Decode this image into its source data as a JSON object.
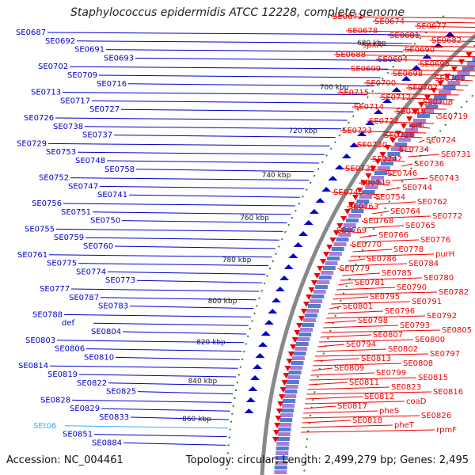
{
  "title": "Staphylococcus epidermidis ATCC 12228, complete genome",
  "accession": "Accession: NC_004461",
  "topology": "Topology: circular; Length: 2,499,279 bp; Genes: 2,495",
  "colors": {
    "left": "#0000cc",
    "right": "#ee0000",
    "highlight": "#33aaff",
    "backbone": "#888888",
    "tick": "#228822"
  },
  "ticks": [
    "680 kbp",
    "700 kbp",
    "720 kbp",
    "740 kbp",
    "760 kbp",
    "780 kbp",
    "800 kbp",
    "820 kbp",
    "840 kbp",
    "860 kbp"
  ],
  "left_labels": [
    "SE0687",
    "SE0692",
    "SE0691",
    "SE0693",
    "SE0702",
    "SE0709",
    "SE0716",
    "SE0713",
    "SE0717",
    "SE0727",
    "SE0726",
    "SE0738",
    "SE0737",
    "SE0729",
    "SE0753",
    "SE0748",
    "SE0758",
    "SE0752",
    "SE0747",
    "SE0741",
    "SE0756",
    "SE0751",
    "SE0750",
    "SE0755",
    "SE0759",
    "SE0760",
    "SE0761",
    "SE0775",
    "SE0774",
    "SE0773",
    "SE0777",
    "SE0787",
    "SE0783",
    "SE0788",
    "def",
    "SE0804",
    "SE0803",
    "SE0806",
    "SE0810",
    "SE0814",
    "SE0819",
    "SE0822",
    "SE0825",
    "SE0828",
    "SE0829",
    "SE0833",
    "SEt06",
    "SE0851",
    "SE0884"
  ],
  "right_labels": [
    "SE0672",
    "SE0674",
    "SE0677",
    "SE0678",
    "SE0681",
    "SE0682",
    "spxA",
    "SE0690",
    "SE0688",
    "SE0694",
    "SE0695",
    "SE0699",
    "SE0698",
    "SE0701",
    "SE0700",
    "SE0707",
    "SE0715",
    "SE0712",
    "SE0708",
    "SE0714",
    "SE0718",
    "SE0719",
    "SE0722",
    "prfC",
    "SE0723",
    "SE0728",
    "SE0724",
    "SE0730",
    "SE0734",
    "SE0731",
    "SE0742",
    "SE0736",
    "SE0735",
    "SE0746",
    "SE0743",
    "SE0749",
    "SE0744",
    "SE0745",
    "SE0754",
    "SE0762",
    "SE0763",
    "SE0764",
    "SE0772",
    "SE0768",
    "SE0765",
    "SE0769",
    "SE0766",
    "SE0776",
    "SE0770",
    "SE0778",
    "purH",
    "SE0786",
    "SE0784",
    "SE0779",
    "SE0785",
    "SE0780",
    "SE0781",
    "SE0790",
    "SE0782",
    "SE0795",
    "SE0791",
    "SE0801",
    "SE0796",
    "SE0792",
    "SE0798",
    "SE0793",
    "SE0805",
    "SE0807",
    "SE0800",
    "SE0794",
    "SE0802",
    "SE0797",
    "SE0813",
    "SE0808",
    "SE0809",
    "SE0799",
    "SE0815",
    "SE0811",
    "SE0823",
    "SE0816",
    "SE0812",
    "coaD",
    "SE0817",
    "pheS",
    "SE0826",
    "SE0818",
    "pheT",
    "rpmF"
  ]
}
